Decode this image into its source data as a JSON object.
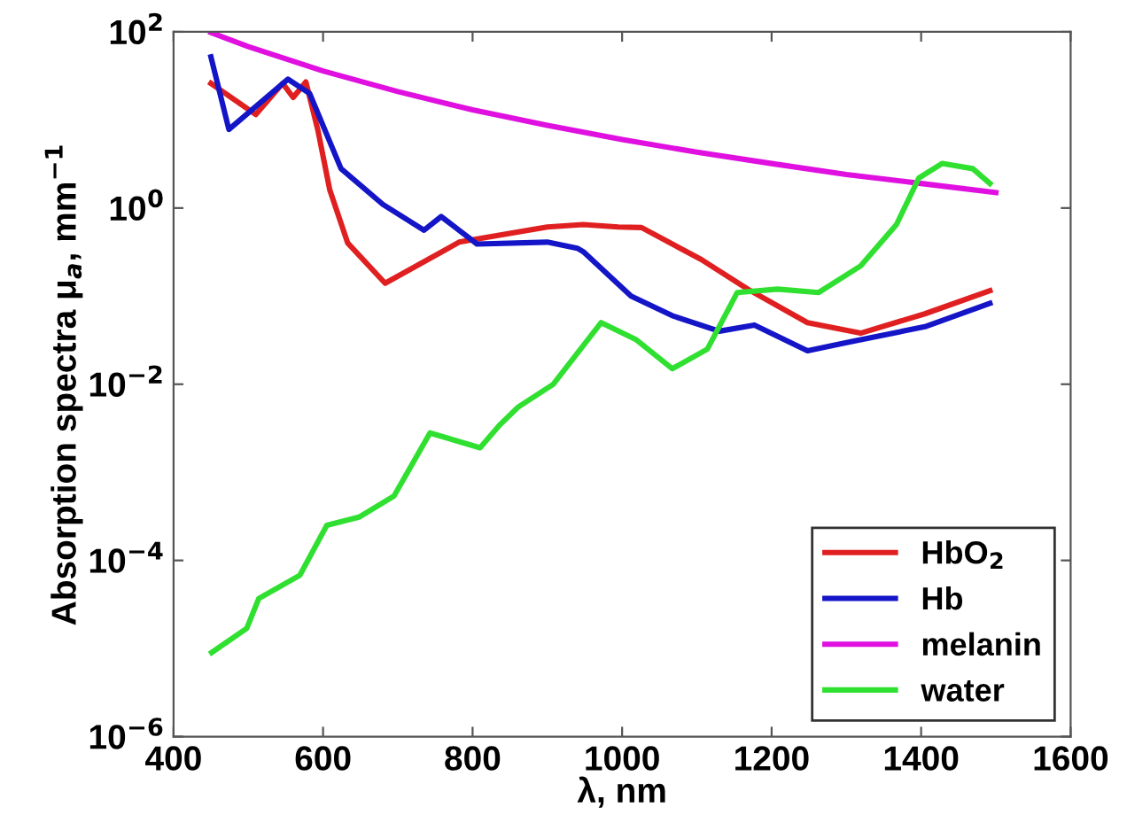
{
  "chart_data": {
    "type": "line",
    "xlabel": "λ, nm",
    "ylabel": "Absorption spectra μ$_{a}$, mm$^{−1}$",
    "xlim": [
      400,
      1600
    ],
    "xticks": [
      400,
      600,
      800,
      1000,
      1200,
      1400,
      1600
    ],
    "log": "y",
    "ylim": [
      1e-06,
      100
    ],
    "yticks": [
      {
        "value": 1e-06,
        "label": "10$^{−6}$"
      },
      {
        "value": 0.0001,
        "label": "10$^{−4}$"
      },
      {
        "value": 0.01,
        "label": "10$^{−2}$"
      },
      {
        "value": 1,
        "label": "10$^{0}$"
      },
      {
        "value": 100,
        "label": "10$^{2}$"
      }
    ],
    "grid": false,
    "legend": "bottom right",
    "marker": "none",
    "line_style": "solid",
    "series": [
      {
        "name": "HbO$_{2}$",
        "color": "#e02020",
        "x": [
          450,
          510,
          546,
          560,
          577,
          593,
          609,
          633,
          683,
          782,
          900,
          948,
          995,
          1026,
          1106,
          1168,
          1248,
          1319,
          1405,
          1492
        ],
        "values": [
          26,
          11.5,
          26,
          18,
          27,
          7.7,
          1.6,
          0.4,
          0.14,
          0.41,
          0.61,
          0.65,
          0.61,
          0.6,
          0.26,
          0.12,
          0.05,
          0.038,
          0.063,
          0.115
        ]
      },
      {
        "name": "Hb",
        "color": "#1515c8",
        "x": [
          450,
          474,
          553,
          582,
          624,
          680,
          735,
          758,
          806,
          900,
          940,
          948,
          1012,
          1067,
          1130,
          1177,
          1248,
          1303,
          1405,
          1492
        ],
        "values": [
          52,
          7.8,
          29,
          20,
          2.8,
          1.1,
          0.56,
          0.8,
          0.39,
          0.41,
          0.35,
          0.32,
          0.1,
          0.06,
          0.04,
          0.047,
          0.024,
          0.03,
          0.045,
          0.083
        ]
      },
      {
        "name": "melanin",
        "color": "#e010e0",
        "x": [
          450,
          500,
          600,
          700,
          800,
          900,
          1000,
          1100,
          1200,
          1300,
          1400,
          1500
        ],
        "values": [
          98,
          68,
          36,
          21,
          13,
          8.7,
          6,
          4.3,
          3.2,
          2.4,
          1.9,
          1.5
        ]
      },
      {
        "name": "water",
        "color": "#30e030",
        "x": [
          451,
          498,
          514,
          569,
          605,
          648,
          695,
          743,
          810,
          837,
          861,
          908,
          972,
          1019,
          1067,
          1114,
          1154,
          1208,
          1263,
          1319,
          1367,
          1397,
          1428,
          1469,
          1492
        ],
        "values": [
          9e-06,
          1.7e-05,
          3.7e-05,
          6.8e-05,
          0.00025,
          0.00031,
          0.00054,
          0.0028,
          0.0019,
          0.0035,
          0.0055,
          0.01,
          0.05,
          0.032,
          0.015,
          0.025,
          0.11,
          0.12,
          0.11,
          0.22,
          0.65,
          2.2,
          3.2,
          2.8,
          1.9
        ]
      }
    ]
  }
}
